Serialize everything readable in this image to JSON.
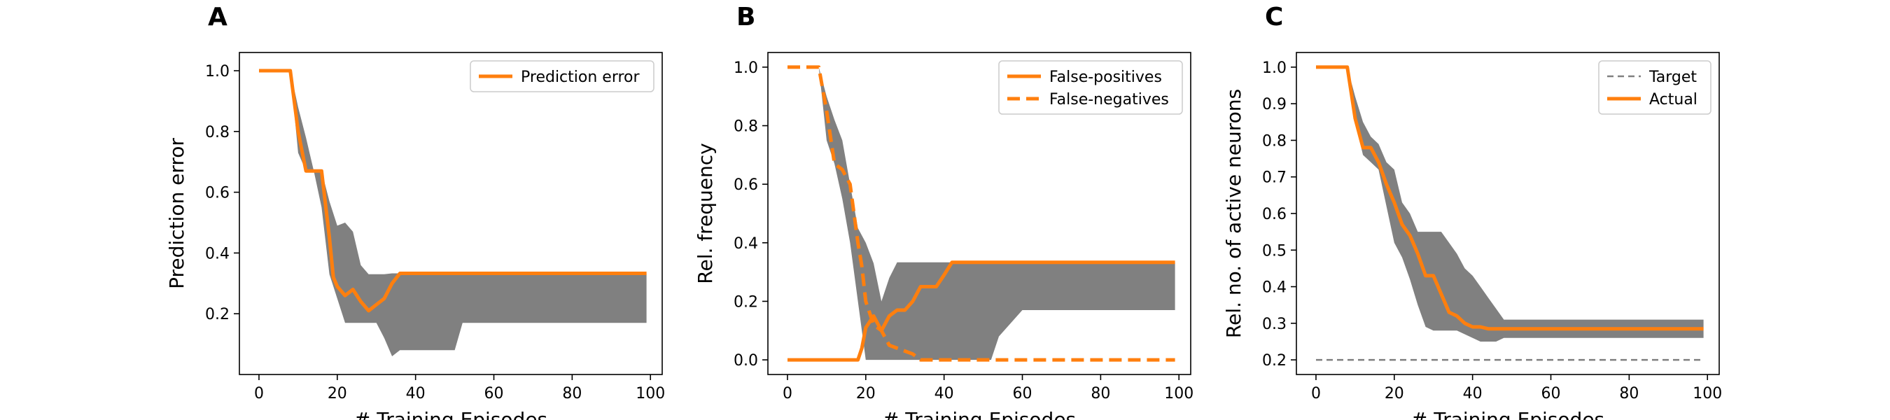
{
  "chart_data": [
    {
      "panel": "A",
      "type": "line",
      "xlabel": "# Training Episodes",
      "ylabel": "Prediction error",
      "xlim": [
        -5,
        103
      ],
      "ylim": [
        0,
        1.06
      ],
      "xticks": [
        0,
        20,
        40,
        60,
        80,
        100
      ],
      "yticks": [
        0.2,
        0.4,
        0.6,
        0.8,
        1.0
      ],
      "xtick_labels": [
        "0",
        "20",
        "40",
        "60",
        "80",
        "100"
      ],
      "ytick_labels": [
        "0.2",
        "0.4",
        "0.6",
        "0.8",
        "1.0"
      ],
      "legend": {
        "position": "top-right",
        "entries": [
          "Prediction error"
        ]
      },
      "series": [
        {
          "name": "Prediction error",
          "style": "solid",
          "color": "#ff7f0e",
          "x": [
            0,
            8,
            10,
            12,
            14,
            16,
            18,
            19,
            20,
            22,
            24,
            26,
            28,
            30,
            32,
            34,
            36,
            40,
            50,
            60,
            70,
            80,
            90,
            99
          ],
          "y": [
            1.0,
            1.0,
            0.8,
            0.67,
            0.67,
            0.67,
            0.45,
            0.32,
            0.29,
            0.26,
            0.28,
            0.24,
            0.21,
            0.23,
            0.25,
            0.3,
            0.333,
            0.333,
            0.333,
            0.333,
            0.333,
            0.333,
            0.333,
            0.333
          ]
        }
      ],
      "band": {
        "color": "#808080",
        "x": [
          0,
          8,
          10,
          12,
          14,
          16,
          18,
          20,
          22,
          24,
          26,
          28,
          30,
          32,
          34,
          36,
          40,
          44,
          48,
          50,
          52,
          60,
          80,
          99
        ],
        "upper": [
          1.0,
          1.0,
          0.88,
          0.78,
          0.67,
          0.67,
          0.57,
          0.49,
          0.5,
          0.47,
          0.36,
          0.33,
          0.33,
          0.33,
          0.333,
          0.333,
          0.333,
          0.333,
          0.333,
          0.333,
          0.333,
          0.333,
          0.333,
          0.333
        ],
        "lower": [
          1.0,
          1.0,
          0.73,
          0.67,
          0.67,
          0.55,
          0.33,
          0.25,
          0.17,
          0.17,
          0.17,
          0.17,
          0.17,
          0.12,
          0.06,
          0.08,
          0.08,
          0.08,
          0.08,
          0.08,
          0.17,
          0.17,
          0.17,
          0.17
        ]
      }
    },
    {
      "panel": "B",
      "type": "line",
      "xlabel": "# Training Episodes",
      "ylabel": "Rel. frequency",
      "xlim": [
        -5,
        103
      ],
      "ylim": [
        -0.05,
        1.05
      ],
      "xticks": [
        0,
        20,
        40,
        60,
        80,
        100
      ],
      "yticks": [
        0.0,
        0.2,
        0.4,
        0.6,
        0.8,
        1.0
      ],
      "xtick_labels": [
        "0",
        "20",
        "40",
        "60",
        "80",
        "100"
      ],
      "ytick_labels": [
        "0.0",
        "0.2",
        "0.4",
        "0.6",
        "0.8",
        "1.0"
      ],
      "legend": {
        "position": "top-right",
        "entries": [
          "False-positives",
          "False-negatives"
        ]
      },
      "series": [
        {
          "name": "False-positives",
          "style": "solid",
          "color": "#ff7f0e",
          "x": [
            0,
            10,
            18,
            19,
            20,
            22,
            24,
            26,
            28,
            30,
            32,
            34,
            36,
            38,
            40,
            42,
            44,
            50,
            60,
            80,
            99
          ],
          "y": [
            0,
            0,
            0,
            0.04,
            0.11,
            0.15,
            0.1,
            0.15,
            0.17,
            0.17,
            0.2,
            0.25,
            0.25,
            0.25,
            0.29,
            0.333,
            0.333,
            0.333,
            0.333,
            0.333,
            0.333
          ]
        },
        {
          "name": "False-negatives",
          "style": "dashed",
          "color": "#ff7f0e",
          "x": [
            0,
            8,
            10,
            12,
            14,
            16,
            18,
            19,
            20,
            22,
            24,
            26,
            28,
            30,
            32,
            34,
            40,
            60,
            80,
            99
          ],
          "y": [
            1.0,
            1.0,
            0.85,
            0.67,
            0.65,
            0.6,
            0.4,
            0.32,
            0.2,
            0.12,
            0.1,
            0.05,
            0.04,
            0.03,
            0.02,
            0.0,
            0.0,
            0.0,
            0.0,
            0.0
          ]
        }
      ],
      "band": {
        "color": "#808080",
        "x": [
          0,
          8,
          10,
          12,
          14,
          16,
          18,
          20,
          22,
          24,
          26,
          28,
          30,
          32,
          34,
          36,
          40,
          44,
          48,
          50,
          52,
          54,
          60,
          80,
          99
        ],
        "upper": [
          1.0,
          1.0,
          0.9,
          0.82,
          0.75,
          0.6,
          0.45,
          0.4,
          0.33,
          0.2,
          0.28,
          0.333,
          0.333,
          0.333,
          0.333,
          0.333,
          0.333,
          0.333,
          0.333,
          0.333,
          0.333,
          0.333,
          0.333,
          0.333,
          0.333
        ],
        "lower": [
          1.0,
          1.0,
          0.75,
          0.67,
          0.55,
          0.4,
          0.2,
          0.0,
          0.0,
          0.0,
          0.0,
          0.0,
          0.0,
          0.0,
          0.0,
          0.0,
          0.0,
          0.0,
          0.0,
          0.0,
          0.0,
          0.08,
          0.17,
          0.17,
          0.17
        ]
      }
    },
    {
      "panel": "C",
      "type": "line",
      "xlabel": "# Training Episodes",
      "ylabel": "Rel. no. of active neurons",
      "xlim": [
        -5,
        103
      ],
      "ylim": [
        0.16,
        1.04
      ],
      "xticks": [
        0,
        20,
        40,
        60,
        80,
        100
      ],
      "yticks": [
        0.2,
        0.3,
        0.4,
        0.5,
        0.6,
        0.7,
        0.8,
        0.9,
        1.0
      ],
      "xtick_labels": [
        "0",
        "20",
        "40",
        "60",
        "80",
        "100"
      ],
      "ytick_labels": [
        "0.2",
        "0.3",
        "0.4",
        "0.5",
        "0.6",
        "0.7",
        "0.8",
        "0.9",
        "1.0"
      ],
      "legend": {
        "position": "top-right",
        "entries": [
          "Target",
          "Actual"
        ]
      },
      "series": [
        {
          "name": "Target",
          "style": "dashed",
          "color": "#808080",
          "x": [
            0,
            99
          ],
          "y": [
            0.2,
            0.2
          ]
        },
        {
          "name": "Actual",
          "style": "solid",
          "color": "#ff7f0e",
          "x": [
            0,
            8,
            10,
            12,
            14,
            16,
            18,
            20,
            22,
            24,
            26,
            28,
            30,
            32,
            34,
            36,
            38,
            40,
            42,
            44,
            46,
            48,
            50,
            60,
            80,
            99
          ],
          "y": [
            1.0,
            1.0,
            0.86,
            0.78,
            0.78,
            0.74,
            0.68,
            0.63,
            0.57,
            0.54,
            0.49,
            0.43,
            0.43,
            0.38,
            0.33,
            0.32,
            0.3,
            0.29,
            0.29,
            0.285,
            0.285,
            0.285,
            0.285,
            0.285,
            0.285,
            0.285
          ]
        }
      ],
      "band": {
        "color": "#808080",
        "x": [
          0,
          8,
          10,
          12,
          14,
          16,
          18,
          20,
          22,
          24,
          26,
          28,
          30,
          32,
          34,
          36,
          38,
          40,
          42,
          44,
          46,
          48,
          50,
          52,
          60,
          80,
          99
        ],
        "upper": [
          1.0,
          1.0,
          0.92,
          0.85,
          0.81,
          0.79,
          0.74,
          0.72,
          0.63,
          0.6,
          0.55,
          0.55,
          0.55,
          0.55,
          0.52,
          0.49,
          0.45,
          0.43,
          0.4,
          0.37,
          0.34,
          0.31,
          0.31,
          0.31,
          0.31,
          0.31,
          0.31
        ],
        "lower": [
          1.0,
          1.0,
          0.85,
          0.76,
          0.74,
          0.72,
          0.62,
          0.52,
          0.48,
          0.42,
          0.35,
          0.29,
          0.28,
          0.28,
          0.28,
          0.28,
          0.27,
          0.26,
          0.25,
          0.25,
          0.25,
          0.26,
          0.26,
          0.26,
          0.26,
          0.26,
          0.26
        ]
      }
    }
  ]
}
